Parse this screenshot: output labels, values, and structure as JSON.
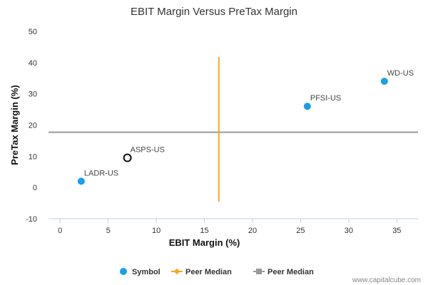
{
  "chart_data": {
    "type": "scatter",
    "title": "EBIT Margin Versus PreTax Margin",
    "xlabel": "EBIT Margin (%)",
    "ylabel": "PreTax Margin (%)",
    "xlim": [
      -1.2,
      37.2
    ],
    "ylim": [
      -10,
      50
    ],
    "xticks": [
      0,
      5,
      10,
      15,
      20,
      25,
      30,
      35
    ],
    "yticks": [
      -10,
      0,
      10,
      20,
      30,
      40,
      50
    ],
    "grid": false,
    "points": [
      {
        "label": "LADR-US",
        "x": 2.2,
        "y": 2.0,
        "style": "filled"
      },
      {
        "label": "ASPS-US",
        "x": 7.0,
        "y": 9.5,
        "style": "hollow"
      },
      {
        "label": "PFSI-US",
        "x": 25.7,
        "y": 26.0,
        "style": "filled"
      },
      {
        "label": "WD-US",
        "x": 33.7,
        "y": 34.0,
        "style": "filled"
      }
    ],
    "peer_median_x": 16.5,
    "peer_median_y": 17.7,
    "legend": {
      "placement": "bottom",
      "items": [
        {
          "name": "Symbol",
          "marker": "circle",
          "color": "#1a9fe8"
        },
        {
          "name": "Peer Median",
          "marker": "diamond-line",
          "color": "#f5a623"
        },
        {
          "name": "Peer Median",
          "marker": "square-line",
          "color": "#999999"
        }
      ]
    },
    "colors": {
      "point": "#1a9fe8",
      "highlight_stroke": "#111111",
      "median_x_line": "#f5a623",
      "median_y_line": "#999999",
      "axis": "#c0d0e0"
    }
  },
  "credit": "www.capitalcube.com"
}
